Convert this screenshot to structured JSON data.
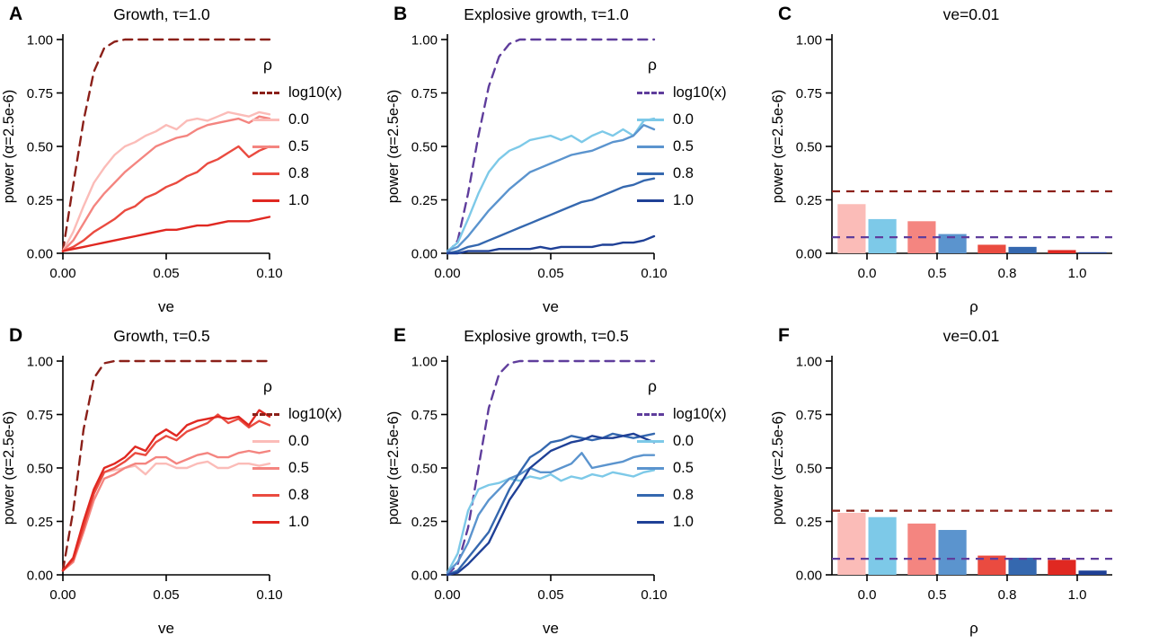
{
  "figure": {
    "background": "#ffffff"
  },
  "chart_data": [
    {
      "id": "A",
      "label": "A",
      "type": "line",
      "title": "Growth, τ=1.0",
      "xlabel": "ve",
      "ylabel": "power (α=2.5e-6)",
      "xlim": [
        0,
        0.1
      ],
      "ylim": [
        0,
        1
      ],
      "xticks": [
        [
          0,
          "0.00"
        ],
        [
          0.05,
          "0.05"
        ],
        [
          0.1,
          "0.10"
        ]
      ],
      "yticks": [
        [
          0,
          "0.00"
        ],
        [
          0.25,
          "0.25"
        ],
        [
          0.5,
          "0.50"
        ],
        [
          0.75,
          "0.75"
        ],
        [
          1,
          "1.00"
        ]
      ],
      "legend": {
        "title": "ρ",
        "entries": [
          {
            "label": "log10(x)",
            "color": "#8b2019",
            "dashed": true
          },
          {
            "label": "0.0",
            "color": "#fbbcb8",
            "dashed": false
          },
          {
            "label": "0.5",
            "color": "#f48580",
            "dashed": false
          },
          {
            "label": "0.8",
            "color": "#ea4b40",
            "dashed": false
          },
          {
            "label": "1.0",
            "color": "#e02821",
            "dashed": false
          }
        ]
      },
      "x": [
        0,
        0.005,
        0.01,
        0.015,
        0.02,
        0.025,
        0.03,
        0.035,
        0.04,
        0.045,
        0.05,
        0.055,
        0.06,
        0.065,
        0.07,
        0.075,
        0.08,
        0.085,
        0.09,
        0.095,
        0.1
      ],
      "series": [
        {
          "name": "log10(x)",
          "color": "#8b2019",
          "dashed": true,
          "y": [
            0.01,
            0.32,
            0.62,
            0.85,
            0.96,
            0.99,
            1,
            1,
            1,
            1,
            1,
            1,
            1,
            1,
            1,
            1,
            1,
            1,
            1,
            1,
            1
          ]
        },
        {
          "name": "0.0",
          "color": "#fbbcb8",
          "dashed": false,
          "y": [
            0.01,
            0.1,
            0.22,
            0.33,
            0.4,
            0.46,
            0.5,
            0.52,
            0.55,
            0.57,
            0.6,
            0.58,
            0.62,
            0.63,
            0.62,
            0.64,
            0.66,
            0.65,
            0.64,
            0.66,
            0.65
          ]
        },
        {
          "name": "0.5",
          "color": "#f48580",
          "dashed": false,
          "y": [
            0.01,
            0.06,
            0.14,
            0.22,
            0.28,
            0.33,
            0.38,
            0.42,
            0.46,
            0.5,
            0.52,
            0.54,
            0.55,
            0.58,
            0.6,
            0.61,
            0.62,
            0.63,
            0.61,
            0.64,
            0.63
          ]
        },
        {
          "name": "0.8",
          "color": "#ea4b40",
          "dashed": false,
          "y": [
            0.01,
            0.03,
            0.06,
            0.1,
            0.13,
            0.16,
            0.2,
            0.22,
            0.26,
            0.28,
            0.31,
            0.33,
            0.36,
            0.38,
            0.42,
            0.44,
            0.47,
            0.5,
            0.45,
            0.48,
            0.5
          ]
        },
        {
          "name": "1.0",
          "color": "#e02821",
          "dashed": false,
          "y": [
            0.01,
            0.02,
            0.03,
            0.04,
            0.05,
            0.06,
            0.07,
            0.08,
            0.09,
            0.1,
            0.11,
            0.11,
            0.12,
            0.13,
            0.13,
            0.14,
            0.15,
            0.15,
            0.15,
            0.16,
            0.17
          ]
        }
      ]
    },
    {
      "id": "B",
      "label": "B",
      "type": "line",
      "title": "Explosive growth, τ=1.0",
      "xlabel": "ve",
      "ylabel": "power (α=2.5e-6)",
      "xlim": [
        0,
        0.1
      ],
      "ylim": [
        0,
        1
      ],
      "xticks": [
        [
          0,
          "0.00"
        ],
        [
          0.05,
          "0.05"
        ],
        [
          0.1,
          "0.10"
        ]
      ],
      "yticks": [
        [
          0,
          "0.00"
        ],
        [
          0.25,
          "0.25"
        ],
        [
          0.5,
          "0.50"
        ],
        [
          0.75,
          "0.75"
        ],
        [
          1,
          "1.00"
        ]
      ],
      "legend": {
        "title": "ρ",
        "entries": [
          {
            "label": "log10(x)",
            "color": "#5f3d9c",
            "dashed": true
          },
          {
            "label": "0.0",
            "color": "#7dc9e8",
            "dashed": false
          },
          {
            "label": "0.5",
            "color": "#5b94ce",
            "dashed": false
          },
          {
            "label": "0.8",
            "color": "#3568af",
            "dashed": false
          },
          {
            "label": "1.0",
            "color": "#1f4096",
            "dashed": false
          }
        ]
      },
      "x": [
        0,
        0.005,
        0.01,
        0.015,
        0.02,
        0.025,
        0.03,
        0.035,
        0.04,
        0.045,
        0.05,
        0.055,
        0.06,
        0.065,
        0.07,
        0.075,
        0.08,
        0.085,
        0.09,
        0.095,
        0.1
      ],
      "series": [
        {
          "name": "log10(x)",
          "color": "#5f3d9c",
          "dashed": true,
          "y": [
            0.0,
            0.06,
            0.28,
            0.55,
            0.78,
            0.92,
            0.98,
            1,
            1,
            1,
            1,
            1,
            1,
            1,
            1,
            1,
            1,
            1,
            1,
            1,
            1
          ]
        },
        {
          "name": "0.0",
          "color": "#7dc9e8",
          "dashed": false,
          "y": [
            0.01,
            0.05,
            0.16,
            0.28,
            0.38,
            0.44,
            0.48,
            0.5,
            0.53,
            0.54,
            0.55,
            0.53,
            0.55,
            0.52,
            0.55,
            0.57,
            0.55,
            0.58,
            0.55,
            0.62,
            0.63
          ]
        },
        {
          "name": "0.5",
          "color": "#5b94ce",
          "dashed": false,
          "y": [
            0.01,
            0.03,
            0.08,
            0.14,
            0.2,
            0.25,
            0.3,
            0.34,
            0.38,
            0.4,
            0.42,
            0.44,
            0.46,
            0.47,
            0.48,
            0.5,
            0.52,
            0.53,
            0.55,
            0.6,
            0.58
          ]
        },
        {
          "name": "0.8",
          "color": "#3568af",
          "dashed": false,
          "y": [
            0.0,
            0.01,
            0.03,
            0.04,
            0.06,
            0.08,
            0.1,
            0.12,
            0.14,
            0.16,
            0.18,
            0.2,
            0.22,
            0.24,
            0.25,
            0.27,
            0.29,
            0.31,
            0.32,
            0.34,
            0.35
          ]
        },
        {
          "name": "1.0",
          "color": "#1f4096",
          "dashed": false,
          "y": [
            0.0,
            0.0,
            0.01,
            0.01,
            0.01,
            0.02,
            0.02,
            0.02,
            0.02,
            0.03,
            0.02,
            0.03,
            0.03,
            0.03,
            0.03,
            0.04,
            0.04,
            0.05,
            0.05,
            0.06,
            0.08
          ]
        }
      ]
    },
    {
      "id": "C",
      "label": "C",
      "type": "bar",
      "title": "ve=0.01",
      "xlabel": "ρ",
      "ylabel": "power (α=2.5e-6)",
      "ylim": [
        0,
        1
      ],
      "yticks": [
        [
          0,
          "0.00"
        ],
        [
          0.25,
          "0.25"
        ],
        [
          0.5,
          "0.50"
        ],
        [
          0.75,
          "0.75"
        ],
        [
          1,
          "1.00"
        ]
      ],
      "categories": [
        "0.0",
        "0.5",
        "0.8",
        "1.0"
      ],
      "series": [
        {
          "name": "Growth",
          "colors": [
            "#fbbcb8",
            "#f48580",
            "#ea4b40",
            "#e02821"
          ],
          "values": [
            0.23,
            0.15,
            0.04,
            0.015
          ]
        },
        {
          "name": "Explosive growth",
          "colors": [
            "#7dc9e8",
            "#5b94ce",
            "#3568af",
            "#1f4096"
          ],
          "values": [
            0.16,
            0.09,
            0.03,
            0.005
          ]
        }
      ],
      "hlines": [
        {
          "y": 0.29,
          "color": "#8b2019"
        },
        {
          "y": 0.075,
          "color": "#5f3d9c"
        }
      ]
    },
    {
      "id": "D",
      "label": "D",
      "type": "line",
      "title": "Growth, τ=0.5",
      "xlabel": "ve",
      "ylabel": "power (α=2.5e-6)",
      "xlim": [
        0,
        0.1
      ],
      "ylim": [
        0,
        1
      ],
      "xticks": [
        [
          0,
          "0.00"
        ],
        [
          0.05,
          "0.05"
        ],
        [
          0.1,
          "0.10"
        ]
      ],
      "yticks": [
        [
          0,
          "0.00"
        ],
        [
          0.25,
          "0.25"
        ],
        [
          0.5,
          "0.50"
        ],
        [
          0.75,
          "0.75"
        ],
        [
          1,
          "1.00"
        ]
      ],
      "legend": {
        "title": "ρ",
        "entries": [
          {
            "label": "log10(x)",
            "color": "#8b2019",
            "dashed": true
          },
          {
            "label": "0.0",
            "color": "#fbbcb8",
            "dashed": false
          },
          {
            "label": "0.5",
            "color": "#f48580",
            "dashed": false
          },
          {
            "label": "0.8",
            "color": "#ea4b40",
            "dashed": false
          },
          {
            "label": "1.0",
            "color": "#e02821",
            "dashed": false
          }
        ]
      },
      "x": [
        0,
        0.005,
        0.01,
        0.015,
        0.02,
        0.025,
        0.03,
        0.035,
        0.04,
        0.045,
        0.05,
        0.055,
        0.06,
        0.065,
        0.07,
        0.075,
        0.08,
        0.085,
        0.09,
        0.095,
        0.1
      ],
      "series": [
        {
          "name": "log10(x)",
          "color": "#8b2019",
          "dashed": true,
          "y": [
            0.02,
            0.3,
            0.68,
            0.92,
            0.99,
            1,
            1,
            1,
            1,
            1,
            1,
            1,
            1,
            1,
            1,
            1,
            1,
            1,
            1,
            1,
            1
          ]
        },
        {
          "name": "0.0",
          "color": "#fbbcb8",
          "dashed": false,
          "y": [
            0.02,
            0.06,
            0.22,
            0.38,
            0.48,
            0.49,
            0.5,
            0.51,
            0.47,
            0.52,
            0.52,
            0.5,
            0.5,
            0.52,
            0.53,
            0.5,
            0.5,
            0.52,
            0.52,
            0.51,
            0.52
          ]
        },
        {
          "name": "0.5",
          "color": "#f48580",
          "dashed": false,
          "y": [
            0.02,
            0.06,
            0.2,
            0.35,
            0.45,
            0.47,
            0.5,
            0.52,
            0.52,
            0.55,
            0.55,
            0.52,
            0.54,
            0.56,
            0.57,
            0.55,
            0.55,
            0.57,
            0.58,
            0.57,
            0.58
          ]
        },
        {
          "name": "0.8",
          "color": "#ea4b40",
          "dashed": false,
          "y": [
            0.02,
            0.07,
            0.22,
            0.38,
            0.48,
            0.5,
            0.53,
            0.57,
            0.56,
            0.62,
            0.65,
            0.63,
            0.67,
            0.69,
            0.71,
            0.75,
            0.71,
            0.73,
            0.69,
            0.72,
            0.7
          ]
        },
        {
          "name": "1.0",
          "color": "#e02821",
          "dashed": false,
          "y": [
            0.02,
            0.08,
            0.25,
            0.4,
            0.5,
            0.52,
            0.55,
            0.6,
            0.58,
            0.65,
            0.68,
            0.65,
            0.7,
            0.72,
            0.73,
            0.74,
            0.73,
            0.74,
            0.7,
            0.77,
            0.74
          ]
        }
      ]
    },
    {
      "id": "E",
      "label": "E",
      "type": "line",
      "title": "Explosive growth, τ=0.5",
      "xlabel": "ve",
      "ylabel": "power (α=2.5e-6)",
      "xlim": [
        0,
        0.1
      ],
      "ylim": [
        0,
        1
      ],
      "xticks": [
        [
          0,
          "0.00"
        ],
        [
          0.05,
          "0.05"
        ],
        [
          0.1,
          "0.10"
        ]
      ],
      "yticks": [
        [
          0,
          "0.00"
        ],
        [
          0.25,
          "0.25"
        ],
        [
          0.5,
          "0.50"
        ],
        [
          0.75,
          "0.75"
        ],
        [
          1,
          "1.00"
        ]
      ],
      "legend": {
        "title": "ρ",
        "entries": [
          {
            "label": "log10(x)",
            "color": "#5f3d9c",
            "dashed": true
          },
          {
            "label": "0.0",
            "color": "#7dc9e8",
            "dashed": false
          },
          {
            "label": "0.5",
            "color": "#5b94ce",
            "dashed": false
          },
          {
            "label": "0.8",
            "color": "#3568af",
            "dashed": false
          },
          {
            "label": "1.0",
            "color": "#1f4096",
            "dashed": false
          }
        ]
      },
      "x": [
        0,
        0.005,
        0.01,
        0.015,
        0.02,
        0.025,
        0.03,
        0.035,
        0.04,
        0.045,
        0.05,
        0.055,
        0.06,
        0.065,
        0.07,
        0.075,
        0.08,
        0.085,
        0.09,
        0.095,
        0.1
      ],
      "series": [
        {
          "name": "log10(x)",
          "color": "#5f3d9c",
          "dashed": true,
          "y": [
            0.0,
            0.05,
            0.22,
            0.5,
            0.78,
            0.94,
            0.99,
            1,
            1,
            1,
            1,
            1,
            1,
            1,
            1,
            1,
            1,
            1,
            1,
            1,
            1
          ]
        },
        {
          "name": "0.0",
          "color": "#7dc9e8",
          "dashed": false,
          "y": [
            0.01,
            0.1,
            0.3,
            0.4,
            0.42,
            0.43,
            0.45,
            0.44,
            0.46,
            0.45,
            0.47,
            0.44,
            0.46,
            0.45,
            0.47,
            0.46,
            0.48,
            0.47,
            0.46,
            0.48,
            0.49
          ]
        },
        {
          "name": "0.5",
          "color": "#5b94ce",
          "dashed": false,
          "y": [
            0.01,
            0.06,
            0.15,
            0.28,
            0.35,
            0.4,
            0.45,
            0.47,
            0.5,
            0.48,
            0.48,
            0.5,
            0.52,
            0.57,
            0.5,
            0.51,
            0.52,
            0.53,
            0.55,
            0.56,
            0.56
          ]
        },
        {
          "name": "0.8",
          "color": "#3568af",
          "dashed": false,
          "y": [
            0.0,
            0.02,
            0.08,
            0.14,
            0.2,
            0.3,
            0.4,
            0.48,
            0.55,
            0.58,
            0.62,
            0.63,
            0.65,
            0.64,
            0.63,
            0.64,
            0.66,
            0.65,
            0.64,
            0.65,
            0.66
          ]
        },
        {
          "name": "1.0",
          "color": "#1f4096",
          "dashed": false,
          "y": [
            0.0,
            0.01,
            0.05,
            0.1,
            0.15,
            0.25,
            0.35,
            0.42,
            0.5,
            0.54,
            0.58,
            0.6,
            0.62,
            0.63,
            0.65,
            0.64,
            0.64,
            0.65,
            0.66,
            0.64,
            0.62
          ]
        }
      ]
    },
    {
      "id": "F",
      "label": "F",
      "type": "bar",
      "title": "ve=0.01",
      "xlabel": "ρ",
      "ylabel": "power (α=2.5e-6)",
      "ylim": [
        0,
        1
      ],
      "yticks": [
        [
          0,
          "0.00"
        ],
        [
          0.25,
          "0.25"
        ],
        [
          0.5,
          "0.50"
        ],
        [
          0.75,
          "0.75"
        ],
        [
          1,
          "1.00"
        ]
      ],
      "categories": [
        "0.0",
        "0.5",
        "0.8",
        "1.0"
      ],
      "series": [
        {
          "name": "Growth",
          "colors": [
            "#fbbcb8",
            "#f48580",
            "#ea4b40",
            "#e02821"
          ],
          "values": [
            0.29,
            0.24,
            0.09,
            0.07
          ]
        },
        {
          "name": "Explosive growth",
          "colors": [
            "#7dc9e8",
            "#5b94ce",
            "#3568af",
            "#1f4096"
          ],
          "values": [
            0.27,
            0.21,
            0.08,
            0.02
          ]
        }
      ],
      "hlines": [
        {
          "y": 0.3,
          "color": "#8b2019"
        },
        {
          "y": 0.075,
          "color": "#5f3d9c"
        }
      ]
    }
  ]
}
